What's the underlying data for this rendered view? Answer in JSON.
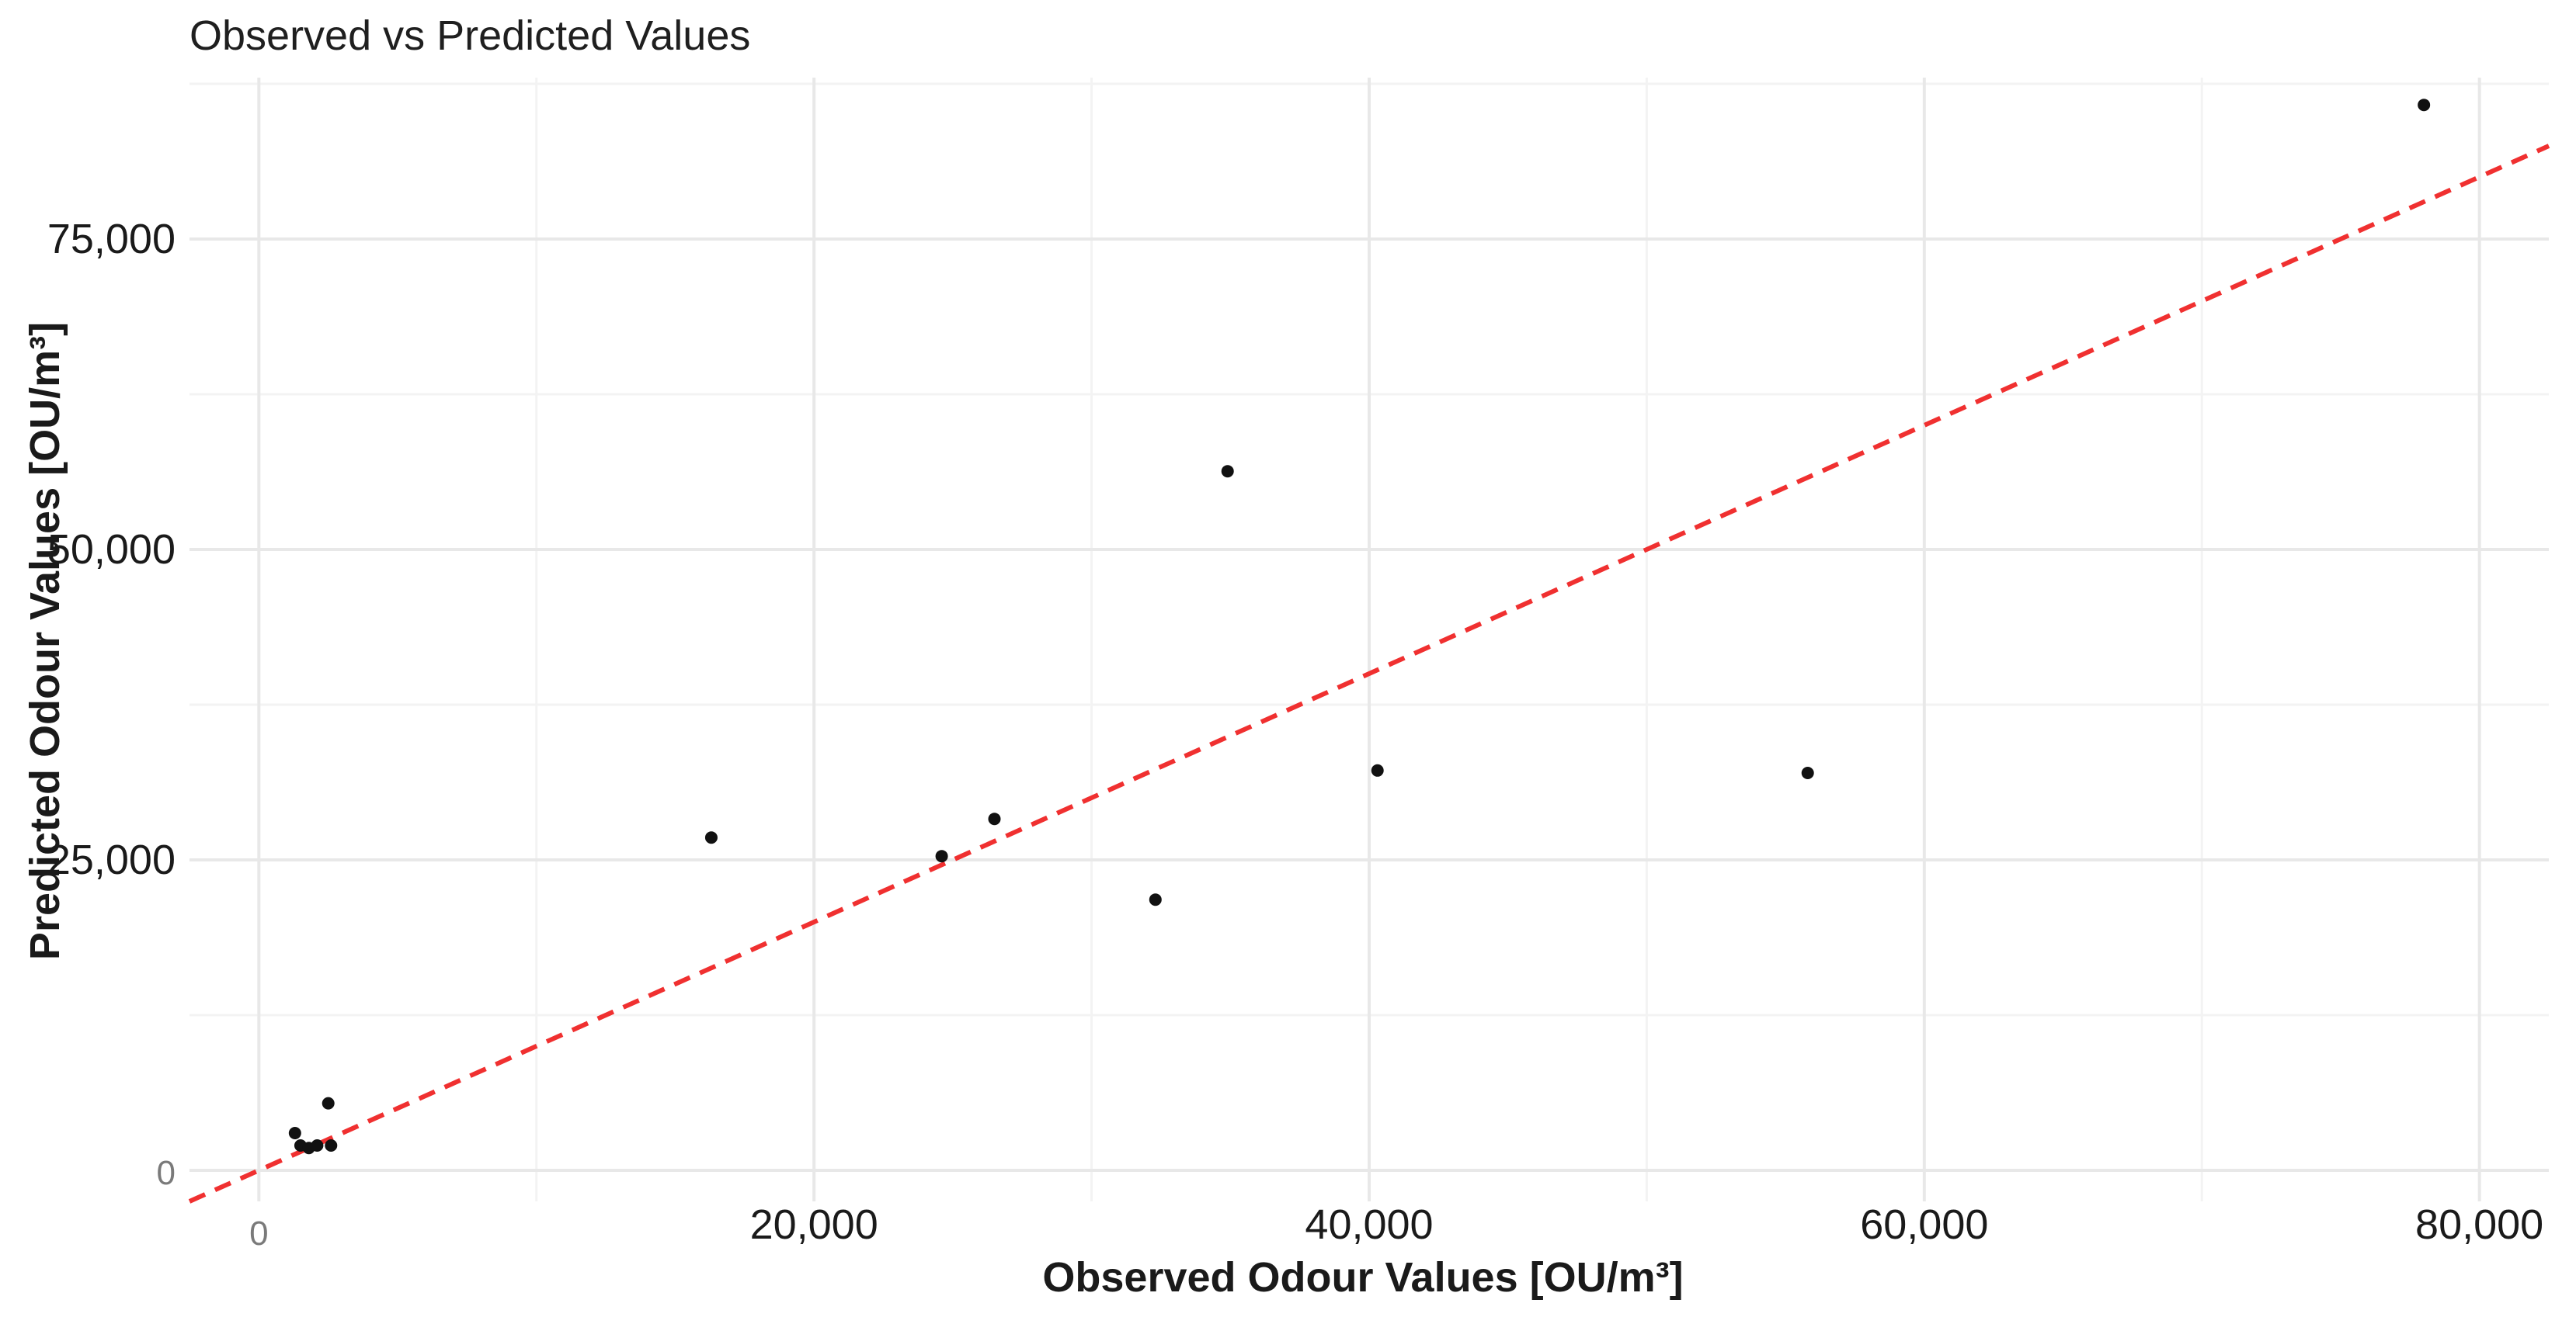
{
  "chart_data": {
    "type": "scatter",
    "title": "Observed vs Predicted Values",
    "xlabel": "Observed Odour Values [OU/m³]",
    "ylabel": "Predicted Odour Values [OU/m³]",
    "xlim": [
      -2500,
      82500
    ],
    "ylim": [
      -2500,
      88000
    ],
    "x_ticks": [
      {
        "value": 0,
        "label": "0"
      },
      {
        "value": 20000,
        "label": "20,000"
      },
      {
        "value": 40000,
        "label": "40,000"
      },
      {
        "value": 60000,
        "label": "60,000"
      },
      {
        "value": 80000,
        "label": "80,000"
      }
    ],
    "y_ticks": [
      {
        "value": 0,
        "label": "0"
      },
      {
        "value": 25000,
        "label": "25,000"
      },
      {
        "value": 50000,
        "label": "50,000"
      },
      {
        "value": 75000,
        "label": "75,000"
      }
    ],
    "grid": true,
    "reference_line": {
      "style": "dashed",
      "color": "#f03030",
      "slope": 1,
      "intercept": 0
    },
    "points": [
      {
        "x": 1300,
        "y": 3000
      },
      {
        "x": 1500,
        "y": 2000
      },
      {
        "x": 1800,
        "y": 1800
      },
      {
        "x": 2100,
        "y": 2000
      },
      {
        "x": 2500,
        "y": 5400
      },
      {
        "x": 2600,
        "y": 2000
      },
      {
        "x": 16300,
        "y": 26800
      },
      {
        "x": 24600,
        "y": 25300
      },
      {
        "x": 26500,
        "y": 28300
      },
      {
        "x": 32300,
        "y": 21800
      },
      {
        "x": 34900,
        "y": 56300
      },
      {
        "x": 40300,
        "y": 32200
      },
      {
        "x": 55800,
        "y": 32000
      },
      {
        "x": 78000,
        "y": 85800
      }
    ]
  }
}
